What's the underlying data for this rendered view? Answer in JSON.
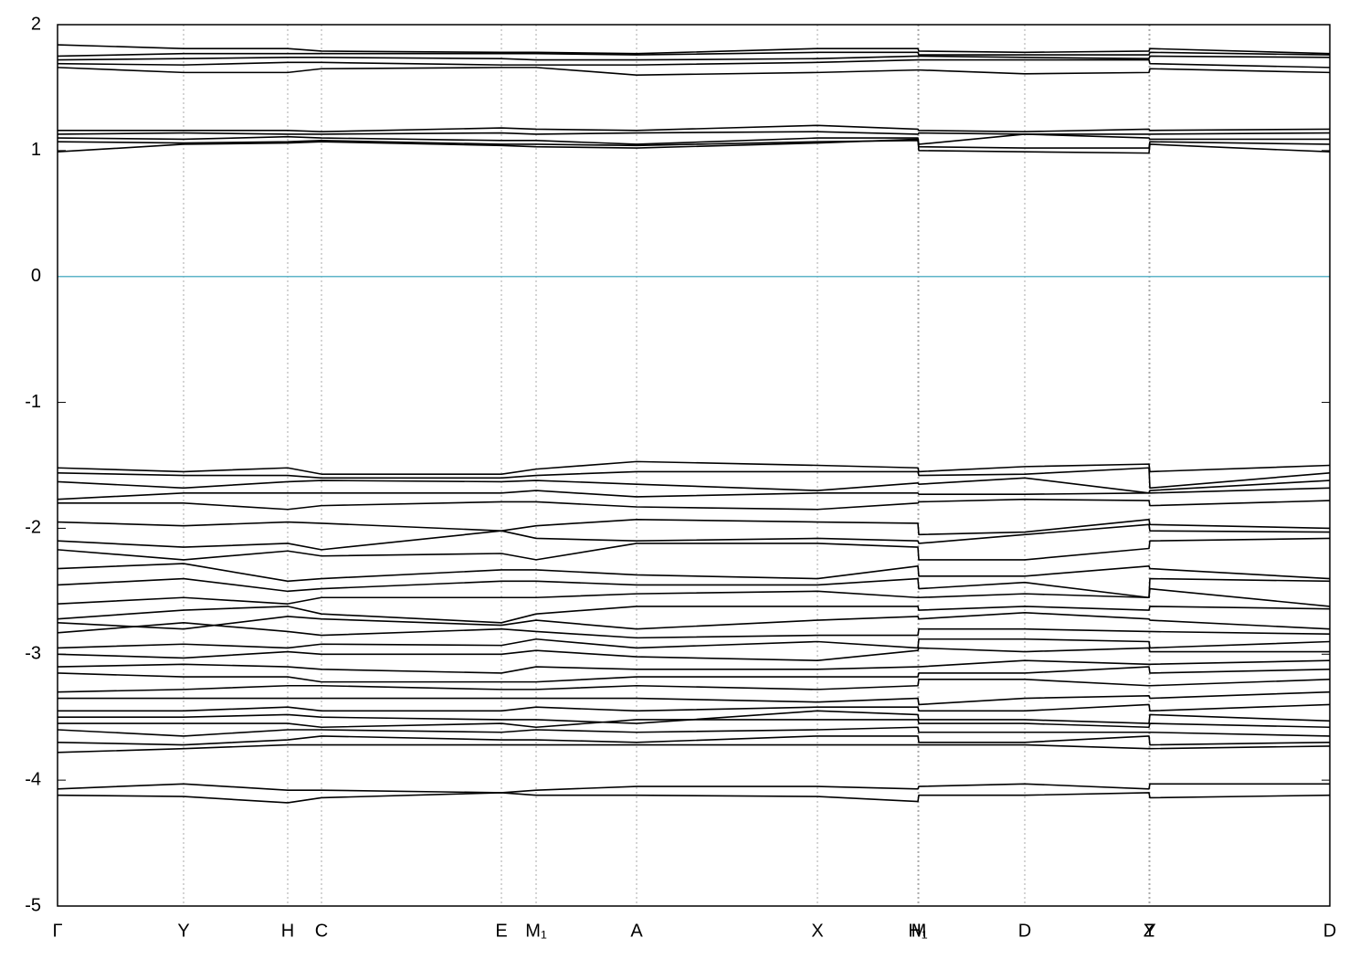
{
  "chart_data": {
    "type": "line",
    "x": [
      0,
      1.38,
      2.52,
      2.89,
      4.86,
      5.24,
      6.34,
      8.32,
      9.42,
      9.43,
      10.59,
      11.95,
      11.96,
      13.93
    ],
    "xlim": [
      0,
      13.93
    ],
    "xticks": [
      {
        "value": 0,
        "label": "Γ"
      },
      {
        "value": 1.38,
        "label": "Y"
      },
      {
        "value": 2.52,
        "label": "H"
      },
      {
        "value": 2.89,
        "label": "C"
      },
      {
        "value": 4.86,
        "label": "E"
      },
      {
        "value": 5.24,
        "label": "M₁"
      },
      {
        "value": 6.34,
        "label": "A"
      },
      {
        "value": 8.32,
        "label": "X"
      },
      {
        "value": 9.42,
        "label": "H₁"
      },
      {
        "value": 9.43,
        "label": "M"
      },
      {
        "value": 10.59,
        "label": "D"
      },
      {
        "value": 11.95,
        "label": "Z"
      },
      {
        "value": 11.96,
        "label": "Y"
      },
      {
        "value": 13.93,
        "label": "D"
      }
    ],
    "ylim": [
      -5,
      2
    ],
    "yticks": [
      2,
      1,
      0,
      -1,
      -2,
      -3,
      -4,
      -5
    ],
    "grid": true,
    "hline": 0,
    "hline_color": "#5fb4c8",
    "series": [
      {
        "color": "#000000",
        "values": [
          1.84,
          1.81,
          1.81,
          1.79,
          1.78,
          1.78,
          1.77,
          1.81,
          1.81,
          1.79,
          1.78,
          1.79,
          1.81,
          1.77
        ]
      },
      {
        "color": "#000000",
        "values": [
          1.75,
          1.77,
          1.77,
          1.77,
          1.77,
          1.77,
          1.76,
          1.78,
          1.78,
          1.76,
          1.76,
          1.76,
          1.78,
          1.76
        ]
      },
      {
        "color": "#000000",
        "values": [
          1.72,
          1.73,
          1.74,
          1.74,
          1.73,
          1.72,
          1.72,
          1.73,
          1.75,
          1.75,
          1.74,
          1.73,
          1.75,
          1.74
        ]
      },
      {
        "color": "#000000",
        "values": [
          1.69,
          1.68,
          1.7,
          1.7,
          1.68,
          1.68,
          1.68,
          1.7,
          1.72,
          1.72,
          1.72,
          1.72,
          1.69,
          1.66
        ]
      },
      {
        "color": "#000000",
        "values": [
          1.66,
          1.62,
          1.62,
          1.65,
          1.66,
          1.66,
          1.6,
          1.62,
          1.64,
          1.64,
          1.61,
          1.62,
          1.65,
          1.62
        ]
      },
      {
        "color": "#000000",
        "values": [
          1.16,
          1.16,
          1.16,
          1.15,
          1.18,
          1.17,
          1.16,
          1.2,
          1.17,
          1.16,
          1.15,
          1.17,
          1.16,
          1.17
        ]
      },
      {
        "color": "#000000",
        "values": [
          1.13,
          1.14,
          1.13,
          1.13,
          1.14,
          1.13,
          1.14,
          1.15,
          1.13,
          1.14,
          1.13,
          1.13,
          1.13,
          1.14
        ]
      },
      {
        "color": "#000000",
        "values": [
          1.1,
          1.09,
          1.11,
          1.1,
          1.08,
          1.08,
          1.05,
          1.1,
          1.1,
          1.05,
          1.13,
          1.1,
          1.09,
          1.09
        ]
      },
      {
        "color": "#000000",
        "values": [
          1.07,
          1.06,
          1.07,
          1.08,
          1.05,
          1.05,
          1.04,
          1.07,
          1.08,
          1.03,
          1.02,
          1.02,
          1.07,
          1.05
        ]
      },
      {
        "color": "#000000",
        "values": [
          0.99,
          1.05,
          1.06,
          1.07,
          1.04,
          1.03,
          1.02,
          1.06,
          1.09,
          1.0,
          0.99,
          0.98,
          1.05,
          0.99
        ]
      },
      {
        "color": "#000000",
        "values": [
          -1.52,
          -1.55,
          -1.52,
          -1.57,
          -1.57,
          -1.53,
          -1.47,
          -1.5,
          -1.52,
          -1.55,
          -1.51,
          -1.49,
          -1.55,
          -1.5
        ]
      },
      {
        "color": "#000000",
        "values": [
          -1.56,
          -1.58,
          -1.58,
          -1.6,
          -1.6,
          -1.58,
          -1.55,
          -1.55,
          -1.55,
          -1.58,
          -1.57,
          -1.52,
          -1.68,
          -1.56
        ]
      },
      {
        "color": "#000000",
        "values": [
          -1.63,
          -1.68,
          -1.63,
          -1.62,
          -1.63,
          -1.62,
          -1.65,
          -1.7,
          -1.64,
          -1.65,
          -1.6,
          -1.72,
          -1.7,
          -1.62
        ]
      },
      {
        "color": "#000000",
        "values": [
          -1.77,
          -1.72,
          -1.72,
          -1.72,
          -1.72,
          -1.7,
          -1.75,
          -1.72,
          -1.72,
          -1.73,
          -1.73,
          -1.72,
          -1.72,
          -1.68
        ]
      },
      {
        "color": "#000000",
        "values": [
          -1.8,
          -1.8,
          -1.85,
          -1.82,
          -1.79,
          -1.79,
          -1.83,
          -1.85,
          -1.8,
          -1.79,
          -1.77,
          -1.78,
          -1.82,
          -1.78
        ]
      },
      {
        "color": "#000000",
        "values": [
          -1.95,
          -1.98,
          -1.95,
          -1.96,
          -2.02,
          -1.98,
          -1.93,
          -1.95,
          -1.96,
          -2.05,
          -2.03,
          -1.93,
          -1.97,
          -2.0
        ]
      },
      {
        "color": "#000000",
        "values": [
          -2.1,
          -2.15,
          -2.12,
          -2.17,
          -2.02,
          -2.08,
          -2.1,
          -2.08,
          -2.1,
          -2.12,
          -2.05,
          -1.97,
          -2.02,
          -2.03
        ]
      },
      {
        "color": "#000000",
        "values": [
          -2.17,
          -2.25,
          -2.18,
          -2.22,
          -2.2,
          -2.25,
          -2.12,
          -2.12,
          -2.15,
          -2.25,
          -2.25,
          -2.16,
          -2.1,
          -2.08
        ]
      },
      {
        "color": "#000000",
        "values": [
          -2.32,
          -2.28,
          -2.42,
          -2.4,
          -2.33,
          -2.33,
          -2.37,
          -2.4,
          -2.3,
          -2.38,
          -2.38,
          -2.3,
          -2.32,
          -2.4
        ]
      },
      {
        "color": "#000000",
        "values": [
          -2.45,
          -2.4,
          -2.5,
          -2.48,
          -2.42,
          -2.42,
          -2.45,
          -2.45,
          -2.4,
          -2.48,
          -2.43,
          -2.55,
          -2.4,
          -2.42
        ]
      },
      {
        "color": "#000000",
        "values": [
          -2.6,
          -2.55,
          -2.6,
          -2.55,
          -2.55,
          -2.55,
          -2.52,
          -2.5,
          -2.55,
          -2.55,
          -2.52,
          -2.55,
          -2.48,
          -2.62
        ]
      },
      {
        "color": "#000000",
        "values": [
          -2.72,
          -2.65,
          -2.62,
          -2.68,
          -2.75,
          -2.68,
          -2.62,
          -2.62,
          -2.62,
          -2.65,
          -2.62,
          -2.65,
          -2.62,
          -2.64
        ]
      },
      {
        "color": "#000000",
        "values": [
          -2.75,
          -2.8,
          -2.7,
          -2.72,
          -2.77,
          -2.73,
          -2.8,
          -2.73,
          -2.7,
          -2.72,
          -2.67,
          -2.72,
          -2.73,
          -2.8
        ]
      },
      {
        "color": "#000000",
        "values": [
          -2.83,
          -2.75,
          -2.82,
          -2.85,
          -2.8,
          -2.82,
          -2.87,
          -2.85,
          -2.85,
          -2.8,
          -2.8,
          -2.82,
          -2.82,
          -2.84
        ]
      },
      {
        "color": "#000000",
        "values": [
          -2.95,
          -2.92,
          -2.95,
          -2.92,
          -2.93,
          -2.88,
          -2.95,
          -2.9,
          -2.95,
          -2.88,
          -2.88,
          -2.9,
          -2.95,
          -2.9
        ]
      },
      {
        "color": "#000000",
        "values": [
          -3.0,
          -3.03,
          -2.98,
          -3.0,
          -3.0,
          -2.97,
          -3.02,
          -3.05,
          -2.97,
          -2.95,
          -2.98,
          -2.95,
          -2.98,
          -2.98
        ]
      },
      {
        "color": "#000000",
        "values": [
          -3.1,
          -3.08,
          -3.1,
          -3.12,
          -3.15,
          -3.1,
          -3.12,
          -3.12,
          -3.1,
          -3.1,
          -3.05,
          -3.08,
          -3.08,
          -3.05
        ]
      },
      {
        "color": "#000000",
        "values": [
          -3.15,
          -3.18,
          -3.18,
          -3.22,
          -3.22,
          -3.22,
          -3.18,
          -3.18,
          -3.18,
          -3.15,
          -3.15,
          -3.1,
          -3.15,
          -3.12
        ]
      },
      {
        "color": "#000000",
        "values": [
          -3.3,
          -3.28,
          -3.25,
          -3.25,
          -3.28,
          -3.28,
          -3.25,
          -3.28,
          -3.25,
          -3.2,
          -3.2,
          -3.25,
          -3.25,
          -3.2
        ]
      },
      {
        "color": "#000000",
        "values": [
          -3.35,
          -3.35,
          -3.35,
          -3.35,
          -3.35,
          -3.35,
          -3.35,
          -3.38,
          -3.35,
          -3.4,
          -3.35,
          -3.33,
          -3.35,
          -3.3
        ]
      },
      {
        "color": "#000000",
        "values": [
          -3.45,
          -3.45,
          -3.42,
          -3.45,
          -3.45,
          -3.42,
          -3.45,
          -3.42,
          -3.42,
          -3.45,
          -3.45,
          -3.4,
          -3.45,
          -3.4
        ]
      },
      {
        "color": "#000000",
        "values": [
          -3.5,
          -3.5,
          -3.48,
          -3.5,
          -3.52,
          -3.52,
          -3.55,
          -3.45,
          -3.48,
          -3.52,
          -3.52,
          -3.55,
          -3.48,
          -3.53
        ]
      },
      {
        "color": "#000000",
        "values": [
          -3.55,
          -3.55,
          -3.55,
          -3.58,
          -3.55,
          -3.58,
          -3.52,
          -3.52,
          -3.52,
          -3.55,
          -3.55,
          -3.58,
          -3.55,
          -3.58
        ]
      },
      {
        "color": "#000000",
        "values": [
          -3.6,
          -3.65,
          -3.6,
          -3.6,
          -3.62,
          -3.6,
          -3.62,
          -3.6,
          -3.58,
          -3.62,
          -3.62,
          -3.62,
          -3.62,
          -3.65
        ]
      },
      {
        "color": "#000000",
        "values": [
          -3.7,
          -3.72,
          -3.68,
          -3.65,
          -3.68,
          -3.68,
          -3.7,
          -3.65,
          -3.65,
          -3.7,
          -3.7,
          -3.65,
          -3.72,
          -3.7
        ]
      },
      {
        "color": "#000000",
        "values": [
          -3.78,
          -3.75,
          -3.72,
          -3.72,
          -3.72,
          -3.72,
          -3.72,
          -3.72,
          -3.72,
          -3.72,
          -3.72,
          -3.75,
          -3.75,
          -3.73
        ]
      },
      {
        "color": "#000000",
        "values": [
          -4.07,
          -4.03,
          -4.08,
          -4.08,
          -4.1,
          -4.08,
          -4.05,
          -4.05,
          -4.07,
          -4.05,
          -4.03,
          -4.07,
          -4.03,
          -4.03
        ]
      },
      {
        "color": "#000000",
        "values": [
          -4.12,
          -4.13,
          -4.18,
          -4.14,
          -4.1,
          -4.12,
          -4.12,
          -4.13,
          -4.17,
          -4.12,
          -4.12,
          -4.1,
          -4.14,
          -4.12
        ]
      }
    ]
  }
}
